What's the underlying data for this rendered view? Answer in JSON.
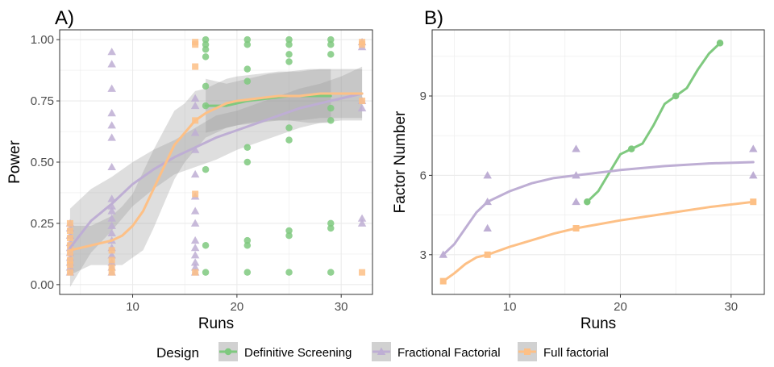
{
  "colors": {
    "dsd": "#7fc97f",
    "ff": "#beaed4",
    "full": "#fdc086",
    "ribbon": "#999999",
    "grid": "#ebebeb",
    "panel_border": "#333333",
    "tick_text": "#4d4d4d"
  },
  "legend": {
    "title": "Design",
    "placement": "bottom",
    "entries": [
      {
        "label": "Definitive Screening",
        "key": "dsd",
        "marker": "circle"
      },
      {
        "label": "Fractional Factorial",
        "key": "ff",
        "marker": "triangle"
      },
      {
        "label": "Full factorial",
        "key": "full",
        "marker": "square"
      }
    ]
  },
  "chart_data": [
    {
      "panel": "A)",
      "type": "scatter",
      "xlabel": "Runs",
      "ylabel": "Power",
      "xlim": [
        3,
        33
      ],
      "ylim": [
        -0.04,
        1.04
      ],
      "xticks": [
        10,
        20,
        30
      ],
      "yticks": [
        0.0,
        0.25,
        0.5,
        0.75,
        1.0
      ],
      "ytick_labels": [
        "0.00",
        "0.25",
        "0.50",
        "0.75",
        "1.00"
      ],
      "grid": true,
      "series": [
        {
          "key": "dsd",
          "marker": "circle",
          "points": [
            [
              17,
              1.0
            ],
            [
              17,
              0.98
            ],
            [
              17,
              0.96
            ],
            [
              17,
              0.93
            ],
            [
              17,
              0.81
            ],
            [
              17,
              0.73
            ],
            [
              17,
              0.47
            ],
            [
              17,
              0.16
            ],
            [
              17,
              0.05
            ],
            [
              21,
              1.0
            ],
            [
              21,
              0.98
            ],
            [
              21,
              0.88
            ],
            [
              21,
              0.83
            ],
            [
              21,
              0.56
            ],
            [
              21,
              0.5
            ],
            [
              21,
              0.18
            ],
            [
              21,
              0.16
            ],
            [
              21,
              0.05
            ],
            [
              25,
              1.0
            ],
            [
              25,
              0.98
            ],
            [
              25,
              0.94
            ],
            [
              25,
              0.91
            ],
            [
              25,
              0.64
            ],
            [
              25,
              0.59
            ],
            [
              25,
              0.22
            ],
            [
              25,
              0.2
            ],
            [
              25,
              0.05
            ],
            [
              29,
              1.0
            ],
            [
              29,
              0.98
            ],
            [
              29,
              0.94
            ],
            [
              29,
              0.72
            ],
            [
              29,
              0.67
            ],
            [
              29,
              0.25
            ],
            [
              29,
              0.23
            ],
            [
              29,
              0.05
            ]
          ],
          "smooth": {
            "x": [
              17,
              19,
              21,
              23,
              25,
              27,
              29
            ],
            "y": [
              0.73,
              0.73,
              0.75,
              0.76,
              0.77,
              0.77,
              0.77
            ],
            "lo": [
              0.62,
              0.64,
              0.66,
              0.67,
              0.67,
              0.66,
              0.66
            ],
            "hi": [
              0.84,
              0.82,
              0.84,
              0.86,
              0.87,
              0.88,
              0.88
            ]
          }
        },
        {
          "key": "ff",
          "marker": "triangle",
          "points": [
            [
              4,
              0.25
            ],
            [
              4,
              0.23
            ],
            [
              4,
              0.2
            ],
            [
              4,
              0.17
            ],
            [
              4,
              0.15
            ],
            [
              4,
              0.13
            ],
            [
              4,
              0.11
            ],
            [
              4,
              0.09
            ],
            [
              4,
              0.07
            ],
            [
              4,
              0.05
            ],
            [
              8,
              0.95
            ],
            [
              8,
              0.9
            ],
            [
              8,
              0.8
            ],
            [
              8,
              0.7
            ],
            [
              8,
              0.65
            ],
            [
              8,
              0.6
            ],
            [
              8,
              0.48
            ],
            [
              8,
              0.35
            ],
            [
              8,
              0.32
            ],
            [
              8,
              0.3
            ],
            [
              8,
              0.27
            ],
            [
              8,
              0.24
            ],
            [
              8,
              0.21
            ],
            [
              8,
              0.18
            ],
            [
              8,
              0.15
            ],
            [
              8,
              0.12
            ],
            [
              8,
              0.09
            ],
            [
              8,
              0.07
            ],
            [
              8,
              0.05
            ],
            [
              16,
              0.76
            ],
            [
              16,
              0.73
            ],
            [
              16,
              0.62
            ],
            [
              16,
              0.55
            ],
            [
              16,
              0.45
            ],
            [
              16,
              0.36
            ],
            [
              16,
              0.3
            ],
            [
              16,
              0.25
            ],
            [
              16,
              0.18
            ],
            [
              16,
              0.15
            ],
            [
              16,
              0.12
            ],
            [
              16,
              0.09
            ],
            [
              16,
              0.07
            ],
            [
              16,
              0.05
            ],
            [
              32,
              0.99
            ],
            [
              32,
              0.97
            ],
            [
              32,
              0.75
            ],
            [
              32,
              0.72
            ],
            [
              32,
              0.27
            ],
            [
              32,
              0.25
            ]
          ],
          "smooth": {
            "x": [
              4,
              6,
              8,
              10,
              12,
              14,
              16,
              18,
              20,
              22,
              24,
              26,
              28,
              30,
              32
            ],
            "y": [
              0.15,
              0.26,
              0.33,
              0.41,
              0.47,
              0.52,
              0.56,
              0.6,
              0.63,
              0.66,
              0.69,
              0.72,
              0.74,
              0.76,
              0.78
            ],
            "lo": [
              -0.01,
              0.13,
              0.22,
              0.32,
              0.39,
              0.45,
              0.48,
              0.51,
              0.55,
              0.58,
              0.61,
              0.64,
              0.66,
              0.67,
              0.67
            ],
            "hi": [
              0.31,
              0.39,
              0.44,
              0.5,
              0.55,
              0.59,
              0.64,
              0.69,
              0.71,
              0.74,
              0.77,
              0.8,
              0.82,
              0.85,
              0.89
            ]
          }
        },
        {
          "key": "full",
          "marker": "square",
          "points": [
            [
              4,
              0.25
            ],
            [
              4,
              0.22
            ],
            [
              4,
              0.19
            ],
            [
              4,
              0.16
            ],
            [
              4,
              0.13
            ],
            [
              4,
              0.1
            ],
            [
              4,
              0.08
            ],
            [
              4,
              0.05
            ],
            [
              8,
              0.14
            ],
            [
              8,
              0.1
            ],
            [
              8,
              0.07
            ],
            [
              8,
              0.05
            ],
            [
              16,
              0.99
            ],
            [
              16,
              0.98
            ],
            [
              16,
              0.89
            ],
            [
              16,
              0.67
            ],
            [
              16,
              0.37
            ],
            [
              16,
              0.05
            ],
            [
              32,
              0.99
            ],
            [
              32,
              0.98
            ],
            [
              32,
              0.75
            ],
            [
              32,
              0.05
            ]
          ],
          "smooth": {
            "x": [
              4,
              6,
              8,
              9,
              10,
              11,
              12,
              13,
              14,
              15,
              16,
              17,
              18,
              19,
              20,
              22,
              24,
              26,
              28,
              30,
              32
            ],
            "y": [
              0.14,
              0.16,
              0.18,
              0.2,
              0.24,
              0.3,
              0.39,
              0.48,
              0.57,
              0.62,
              0.67,
              0.7,
              0.72,
              0.74,
              0.75,
              0.76,
              0.77,
              0.77,
              0.78,
              0.78,
              0.78
            ],
            "lo": [
              0.04,
              0.08,
              0.08,
              0.08,
              0.11,
              0.14,
              0.23,
              0.33,
              0.43,
              0.5,
              0.55,
              0.6,
              0.62,
              0.64,
              0.65,
              0.66,
              0.67,
              0.67,
              0.68,
              0.68,
              0.68
            ],
            "hi": [
              0.24,
              0.24,
              0.28,
              0.32,
              0.37,
              0.46,
              0.55,
              0.63,
              0.71,
              0.74,
              0.79,
              0.8,
              0.82,
              0.84,
              0.85,
              0.86,
              0.87,
              0.87,
              0.88,
              0.88,
              0.88
            ]
          }
        }
      ]
    },
    {
      "panel": "B)",
      "type": "line",
      "xlabel": "Runs",
      "ylabel": "Factor Number",
      "xlim": [
        3,
        33
      ],
      "ylim": [
        1.5,
        11.5
      ],
      "xticks": [
        10,
        20,
        30
      ],
      "yticks": [
        3,
        6,
        9
      ],
      "ytick_labels": [
        "3",
        "6",
        "9"
      ],
      "grid": true,
      "series": [
        {
          "key": "dsd",
          "marker": "circle",
          "points": [
            [
              17,
              5
            ],
            [
              21,
              7
            ],
            [
              25,
              9
            ],
            [
              29,
              11
            ]
          ],
          "line": {
            "x": [
              17,
              18,
              19,
              20,
              21,
              22,
              23,
              24,
              25,
              26,
              27,
              28,
              29
            ],
            "y": [
              5,
              5.4,
              6.1,
              6.8,
              7.0,
              7.2,
              7.9,
              8.7,
              9.0,
              9.3,
              10.0,
              10.6,
              11.0
            ]
          }
        },
        {
          "key": "ff",
          "marker": "triangle",
          "points": [
            [
              4,
              3
            ],
            [
              8,
              4
            ],
            [
              8,
              5
            ],
            [
              8,
              6
            ],
            [
              16,
              5
            ],
            [
              16,
              6
            ],
            [
              16,
              7
            ],
            [
              32,
              6
            ],
            [
              32,
              7
            ]
          ],
          "line": {
            "x": [
              4,
              5,
              6,
              7,
              8,
              10,
              12,
              14,
              16,
              20,
              24,
              28,
              32
            ],
            "y": [
              3,
              3.4,
              4.0,
              4.6,
              5.0,
              5.4,
              5.7,
              5.9,
              6.0,
              6.2,
              6.35,
              6.45,
              6.5
            ]
          }
        },
        {
          "key": "full",
          "marker": "square",
          "points": [
            [
              4,
              2
            ],
            [
              8,
              3
            ],
            [
              16,
              4
            ],
            [
              32,
              5
            ]
          ],
          "line": {
            "x": [
              4,
              5,
              6,
              7,
              8,
              10,
              12,
              14,
              16,
              20,
              24,
              28,
              32
            ],
            "y": [
              2.0,
              2.3,
              2.65,
              2.9,
              3.0,
              3.3,
              3.55,
              3.8,
              4.0,
              4.3,
              4.55,
              4.8,
              5.0
            ]
          }
        }
      ]
    }
  ]
}
